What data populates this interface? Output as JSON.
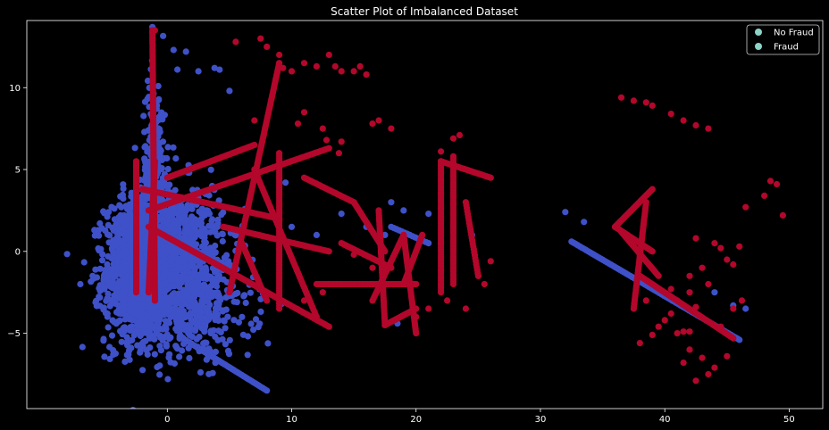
{
  "chart_data": {
    "type": "scatter",
    "title": "Scatter Plot of Imbalanced Dataset",
    "xlabel": "",
    "ylabel": "",
    "xlim": [
      -11.3,
      52.7
    ],
    "ylim": [
      -9.6,
      14.1
    ],
    "xticks": [
      0,
      10,
      20,
      30,
      40,
      50
    ],
    "xtick_labels": [
      "0",
      "10",
      "20",
      "30",
      "40",
      "50"
    ],
    "yticks": [
      -5,
      0,
      5,
      10
    ],
    "ytick_labels": [
      "−5",
      "0",
      "5",
      "10"
    ],
    "grid": false,
    "background": "#000000",
    "legend": {
      "placement": "top-right",
      "entries": [
        {
          "label": "No Fraud",
          "color": "#8dd3c7"
        },
        {
          "label": "Fraud",
          "color": "#8dd3c7"
        }
      ]
    },
    "series": [
      {
        "name": "No Fraud",
        "color": "#3f51c8",
        "clusters": [
          {
            "cx": -2.0,
            "cy": -1.2,
            "sx": 1.5,
            "sy": 2.2,
            "n": 1400
          },
          {
            "cx": 0.5,
            "cy": 0.5,
            "sx": 2.0,
            "sy": 1.8,
            "n": 700
          },
          {
            "cx": -1.0,
            "cy": 5.0,
            "sx": 0.5,
            "sy": 2.8,
            "n": 220
          },
          {
            "cx": 2.5,
            "cy": -3.5,
            "sx": 2.2,
            "sy": 1.6,
            "n": 350
          }
        ],
        "points": [
          [
            -7,
            -2.0
          ],
          [
            -1.2,
            13.7
          ],
          [
            0.5,
            12.3
          ],
          [
            1.5,
            12.2
          ],
          [
            2.5,
            11.0
          ],
          [
            3.8,
            11.2
          ],
          [
            4.2,
            11.1
          ],
          [
            5.0,
            9.8
          ],
          [
            9.5,
            4.2
          ],
          [
            10.0,
            1.5
          ],
          [
            12.0,
            1.0
          ],
          [
            14.0,
            2.3
          ],
          [
            16.0,
            1.5
          ],
          [
            17.5,
            1.0
          ],
          [
            18.0,
            3.0
          ],
          [
            19.0,
            2.5
          ],
          [
            21.0,
            2.3
          ],
          [
            22.0,
            0.5
          ],
          [
            24.5,
            1.0
          ],
          [
            18.5,
            -4.4
          ],
          [
            32.0,
            2.4
          ],
          [
            33.5,
            1.8
          ],
          [
            44.0,
            -2.5
          ],
          [
            45.5,
            -3.3
          ],
          [
            46.5,
            -3.5
          ]
        ],
        "lines": [
          {
            "from": [
              1.0,
              -5.2
            ],
            "to": [
              8.0,
              -8.5
            ],
            "n": 45
          },
          {
            "from": [
              18.0,
              1.5
            ],
            "to": [
              21.0,
              0.5
            ],
            "n": 14
          },
          {
            "from": [
              32.5,
              0.6
            ],
            "to": [
              46.0,
              -5.4
            ],
            "n": 80
          }
        ]
      },
      {
        "name": "Fraud",
        "color": "#b3072b",
        "points": [
          [
            -1.0,
            13.5
          ],
          [
            5.5,
            12.8
          ],
          [
            7.5,
            13.0
          ],
          [
            8.0,
            12.5
          ],
          [
            9.0,
            12.0
          ],
          [
            9.3,
            11.2
          ],
          [
            10.0,
            11.0
          ],
          [
            11.0,
            11.5
          ],
          [
            12.0,
            11.3
          ],
          [
            13.0,
            12.0
          ],
          [
            13.5,
            11.3
          ],
          [
            14.0,
            11.0
          ],
          [
            15.0,
            11.0
          ],
          [
            16.0,
            10.8
          ],
          [
            15.5,
            11.3
          ],
          [
            7.0,
            8.0
          ],
          [
            11.0,
            8.5
          ],
          [
            10.5,
            7.8
          ],
          [
            12.5,
            7.5
          ],
          [
            12.8,
            6.8
          ],
          [
            14.0,
            6.7
          ],
          [
            13.8,
            6.0
          ],
          [
            16.5,
            7.8
          ],
          [
            17.0,
            8.0
          ],
          [
            18.0,
            7.5
          ],
          [
            22.0,
            6.1
          ],
          [
            23.0,
            6.9
          ],
          [
            23.5,
            7.1
          ],
          [
            25.0,
            -1.5
          ],
          [
            25.5,
            -2.0
          ],
          [
            26.0,
            -0.6
          ],
          [
            24.0,
            -3.5
          ],
          [
            22.5,
            -3.0
          ],
          [
            15.0,
            -0.2
          ],
          [
            16.5,
            -1.0
          ],
          [
            13.0,
            -2.0
          ],
          [
            12.5,
            -2.5
          ],
          [
            20.0,
            -4.0
          ],
          [
            21.0,
            -3.5
          ],
          [
            11.0,
            -3.0
          ],
          [
            36.5,
            9.4
          ],
          [
            37.5,
            9.2
          ],
          [
            38.5,
            9.1
          ],
          [
            39.0,
            8.9
          ],
          [
            40.5,
            8.4
          ],
          [
            41.5,
            8.0
          ],
          [
            43.5,
            7.5
          ],
          [
            42.5,
            7.7
          ],
          [
            38.0,
            -5.6
          ],
          [
            39.0,
            -5.1
          ],
          [
            39.5,
            -4.6
          ],
          [
            40.0,
            -4.2
          ],
          [
            40.5,
            -3.8
          ],
          [
            41.0,
            -3.0
          ],
          [
            42.0,
            -4.9
          ],
          [
            42.5,
            -3.4
          ],
          [
            43.0,
            -6.5
          ],
          [
            43.5,
            -7.5
          ],
          [
            42.5,
            -7.9
          ],
          [
            44.0,
            -7.1
          ],
          [
            45.0,
            -6.4
          ],
          [
            45.5,
            -3.5
          ],
          [
            46.2,
            -3.0
          ],
          [
            44.5,
            -4.6
          ],
          [
            42.0,
            -6.0
          ],
          [
            41.5,
            -4.9
          ],
          [
            42.5,
            0.8
          ],
          [
            42.0,
            -1.5
          ],
          [
            43.5,
            -2.0
          ],
          [
            44.0,
            0.5
          ],
          [
            44.5,
            0.2
          ],
          [
            45.0,
            -0.5
          ],
          [
            45.5,
            -0.8
          ],
          [
            46.0,
            0.3
          ],
          [
            42.0,
            -2.5
          ],
          [
            43.0,
            -1.0
          ],
          [
            40.5,
            -2.3
          ],
          [
            46.5,
            2.7
          ],
          [
            48.0,
            3.4
          ],
          [
            48.5,
            4.3
          ],
          [
            49.0,
            4.1
          ],
          [
            49.5,
            2.2
          ],
          [
            41.5,
            -6.8
          ],
          [
            41.0,
            -5.0
          ],
          [
            38.5,
            -3.0
          ]
        ],
        "lines": [
          {
            "from": [
              -1.2,
              13.5
            ],
            "to": [
              -1.0,
              -3.0
            ],
            "n": 130
          },
          {
            "from": [
              -2.5,
              5.5
            ],
            "to": [
              -2.5,
              -2.5
            ],
            "n": 60
          },
          {
            "from": [
              -1.5,
              2.5
            ],
            "to": [
              13.0,
              6.3
            ],
            "n": 110
          },
          {
            "from": [
              -1.5,
              1.5
            ],
            "to": [
              13.0,
              -4.6
            ],
            "n": 120
          },
          {
            "from": [
              -2.0,
              3.8
            ],
            "to": [
              9.0,
              2.0
            ],
            "n": 80
          },
          {
            "from": [
              -1.0,
              5.5
            ],
            "to": [
              -1.5,
              -2.5
            ],
            "n": 60
          },
          {
            "from": [
              0.0,
              4.5
            ],
            "to": [
              7.0,
              6.5
            ],
            "n": 50
          },
          {
            "from": [
              5.0,
              -2.5
            ],
            "to": [
              9.0,
              11.5
            ],
            "n": 100
          },
          {
            "from": [
              6.0,
              0.5
            ],
            "to": [
              8.0,
              -3.0
            ],
            "n": 25
          },
          {
            "from": [
              7.0,
              5.0
            ],
            "to": [
              12.0,
              -4.0
            ],
            "n": 60
          },
          {
            "from": [
              4.5,
              1.5
            ],
            "to": [
              13.0,
              0.0
            ],
            "n": 60
          },
          {
            "from": [
              9.0,
              6.0
            ],
            "to": [
              9.0,
              -3.5
            ],
            "n": 60
          },
          {
            "from": [
              11.0,
              4.5
            ],
            "to": [
              15.0,
              3.0
            ],
            "n": 30
          },
          {
            "from": [
              15.0,
              3.0
            ],
            "to": [
              17.5,
              0.0
            ],
            "n": 25
          },
          {
            "from": [
              12.0,
              -2.0
            ],
            "to": [
              20.0,
              -2.0
            ],
            "n": 60
          },
          {
            "from": [
              17.0,
              2.5
            ],
            "to": [
              17.5,
              -4.5
            ],
            "n": 50
          },
          {
            "from": [
              17.5,
              -4.5
            ],
            "to": [
              20.0,
              -3.5
            ],
            "n": 25
          },
          {
            "from": [
              16.5,
              -3.0
            ],
            "to": [
              19.0,
              1.0
            ],
            "n": 30
          },
          {
            "from": [
              19.0,
              1.0
            ],
            "to": [
              20.0,
              -5.0
            ],
            "n": 45
          },
          {
            "from": [
              20.5,
              1.0
            ],
            "to": [
              19.0,
              -2.0
            ],
            "n": 25
          },
          {
            "from": [
              22.0,
              5.5
            ],
            "to": [
              22.0,
              -2.5
            ],
            "n": 55
          },
          {
            "from": [
              22.0,
              5.5
            ],
            "to": [
              26.0,
              4.5
            ],
            "n": 30
          },
          {
            "from": [
              23.0,
              5.8
            ],
            "to": [
              23.0,
              -2.0
            ],
            "n": 50
          },
          {
            "from": [
              24.0,
              3.0
            ],
            "to": [
              25.0,
              -1.5
            ],
            "n": 25
          },
          {
            "from": [
              14.0,
              0.5
            ],
            "to": [
              18.0,
              -1.0
            ],
            "n": 30
          },
          {
            "from": [
              36.0,
              1.5
            ],
            "to": [
              39.0,
              3.8
            ],
            "n": 35
          },
          {
            "from": [
              36.0,
              1.5
            ],
            "to": [
              39.0,
              0.0
            ],
            "n": 30
          },
          {
            "from": [
              38.5,
              3.0
            ],
            "to": [
              37.5,
              -3.5
            ],
            "n": 45
          },
          {
            "from": [
              38.0,
              -1.5
            ],
            "to": [
              45.5,
              -5.3
            ],
            "n": 70
          },
          {
            "from": [
              36.5,
              1.2
            ],
            "to": [
              39.5,
              -1.5
            ],
            "n": 30
          }
        ]
      }
    ]
  }
}
